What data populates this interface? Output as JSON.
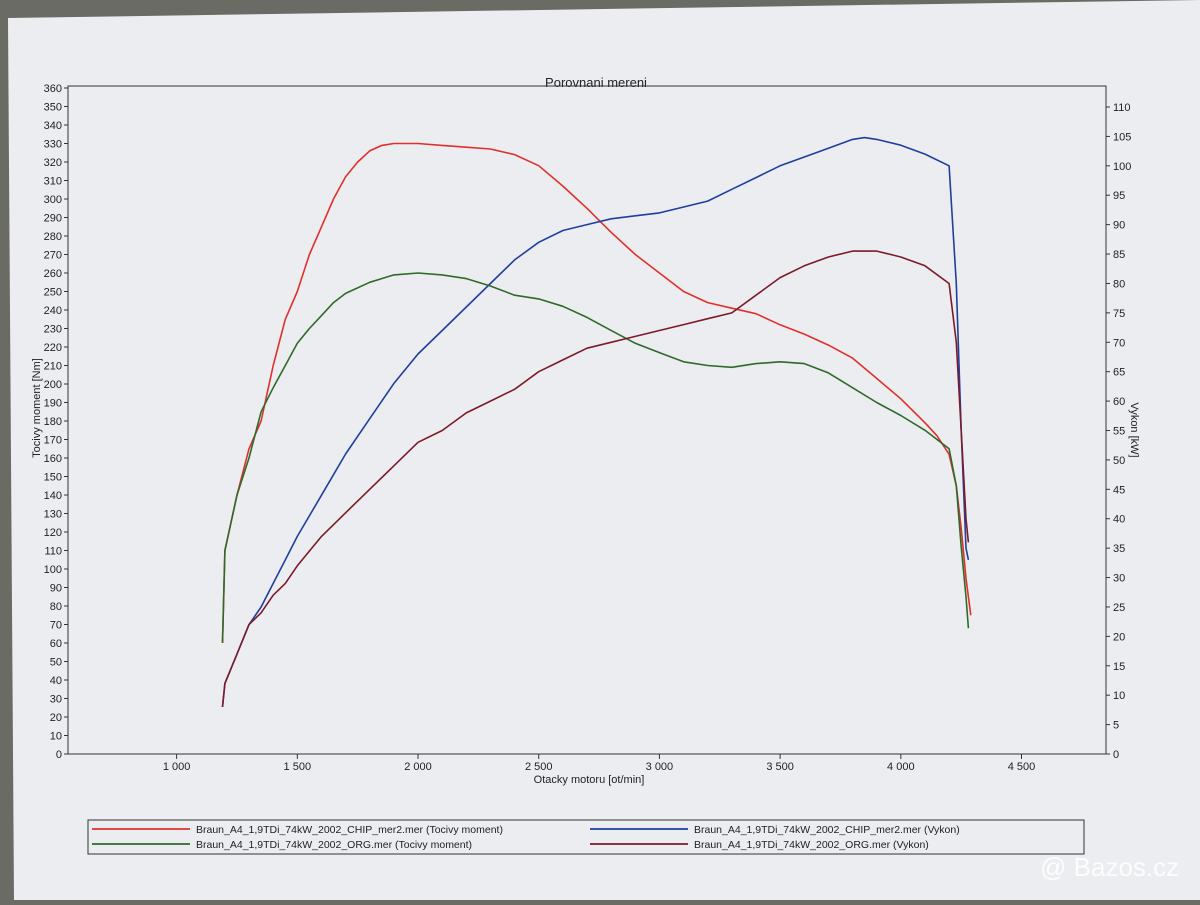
{
  "colors": {
    "paper": "#ebedf0",
    "chip_torque": "#e0302c",
    "chip_power": "#1f3f9e",
    "org_torque": "#2f6a2a",
    "org_power": "#7d1a2a",
    "grid_text": "#222222"
  },
  "watermark": {
    "icon": "at-icon",
    "text": "Bazos.cz"
  },
  "chart_data": {
    "type": "line",
    "title": "Porovnani mereni",
    "xlabel": "Otacky motoru [ot/min]",
    "ylabel": "Tocivy moment [Nm]",
    "y2label": "Vykon [kW]",
    "xlim": [
      550,
      4850
    ],
    "ylim": [
      0,
      360
    ],
    "y2lim": [
      0,
      110
    ],
    "x_ticks": [
      1000,
      1500,
      2000,
      2500,
      3000,
      3500,
      4000,
      4500
    ],
    "x_tick_labels": [
      "1 000",
      "1 500",
      "2 000",
      "2 500",
      "3 000",
      "3 500",
      "4 000",
      "4 500"
    ],
    "y_ticks": [
      0,
      10,
      20,
      30,
      40,
      50,
      60,
      70,
      80,
      90,
      100,
      110,
      120,
      130,
      140,
      150,
      160,
      170,
      180,
      190,
      200,
      210,
      220,
      230,
      240,
      250,
      260,
      270,
      280,
      290,
      300,
      310,
      320,
      330,
      340,
      350,
      360
    ],
    "y2_ticks": [
      0,
      5,
      10,
      15,
      20,
      25,
      30,
      35,
      40,
      45,
      50,
      55,
      60,
      65,
      70,
      75,
      80,
      85,
      90,
      95,
      100,
      105,
      110
    ],
    "grid": false,
    "legend_position": "bottom",
    "series": [
      {
        "name": "Braun_A4_1,9TDi_74kW_2002_CHIP_mer2.mer  (Tocivy moment)",
        "axis": "left",
        "color_key": "chip_torque",
        "x": [
          1190,
          1200,
          1250,
          1300,
          1350,
          1400,
          1450,
          1500,
          1550,
          1600,
          1650,
          1700,
          1750,
          1800,
          1850,
          1900,
          1950,
          2000,
          2100,
          2200,
          2300,
          2400,
          2500,
          2600,
          2700,
          2800,
          2900,
          3000,
          3100,
          3200,
          3300,
          3400,
          3500,
          3600,
          3700,
          3800,
          3900,
          4000,
          4100,
          4150,
          4200,
          4230,
          4250,
          4270,
          4290
        ],
        "y": [
          60,
          110,
          140,
          165,
          180,
          210,
          235,
          250,
          270,
          285,
          300,
          312,
          320,
          326,
          329,
          330,
          330,
          330,
          329,
          328,
          327,
          324,
          318,
          307,
          295,
          282,
          270,
          260,
          250,
          244,
          241,
          238,
          232,
          227,
          221,
          214,
          203,
          192,
          179,
          172,
          162,
          145,
          122,
          95,
          75
        ]
      },
      {
        "name": "Braun_A4_1,9TDi_74kW_2002_CHIP_mer2.mer  (Vykon)",
        "axis": "right",
        "color_key": "chip_power",
        "x": [
          1190,
          1200,
          1250,
          1300,
          1350,
          1400,
          1450,
          1500,
          1600,
          1700,
          1800,
          1900,
          2000,
          2100,
          2200,
          2300,
          2400,
          2500,
          2600,
          2700,
          2800,
          2900,
          3000,
          3100,
          3200,
          3300,
          3400,
          3500,
          3600,
          3700,
          3800,
          3850,
          3900,
          4000,
          4100,
          4200,
          4230,
          4250,
          4270,
          4280
        ],
        "y": [
          8,
          12,
          17,
          22,
          25,
          29,
          33,
          37,
          44,
          51,
          57,
          63,
          68,
          72,
          76,
          80,
          84,
          87,
          89,
          90,
          91,
          91.5,
          92,
          93,
          94,
          96,
          98,
          100,
          101.5,
          103,
          104.5,
          104.8,
          104.5,
          103.5,
          102,
          100,
          80,
          55,
          35,
          33
        ]
      },
      {
        "name": "Braun_A4_1,9TDi_74kW_2002_ORG.mer  (Tocivy moment)",
        "axis": "left",
        "color_key": "org_torque",
        "x": [
          1190,
          1200,
          1250,
          1300,
          1350,
          1400,
          1450,
          1500,
          1550,
          1600,
          1650,
          1700,
          1800,
          1900,
          2000,
          2100,
          2200,
          2300,
          2400,
          2500,
          2600,
          2700,
          2800,
          2900,
          3000,
          3100,
          3200,
          3300,
          3400,
          3500,
          3600,
          3700,
          3800,
          3900,
          4000,
          4100,
          4150,
          4200,
          4230,
          4250,
          4270,
          4280
        ],
        "y": [
          60,
          110,
          140,
          160,
          185,
          198,
          210,
          222,
          230,
          237,
          244,
          249,
          255,
          259,
          260,
          259,
          257,
          253,
          248,
          246,
          242,
          236,
          229,
          222,
          217,
          212,
          210,
          209,
          211,
          212,
          211,
          206,
          198,
          190,
          183,
          175,
          170,
          165,
          145,
          112,
          85,
          68
        ]
      },
      {
        "name": "Braun_A4_1,9TDi_74kW_2002_ORG.mer  (Vykon)",
        "axis": "right",
        "color_key": "org_power",
        "x": [
          1190,
          1200,
          1250,
          1300,
          1350,
          1400,
          1450,
          1500,
          1600,
          1700,
          1800,
          1900,
          2000,
          2100,
          2200,
          2300,
          2400,
          2500,
          2600,
          2700,
          2800,
          2900,
          3000,
          3100,
          3200,
          3300,
          3400,
          3500,
          3600,
          3700,
          3800,
          3900,
          4000,
          4100,
          4200,
          4230,
          4250,
          4270,
          4280
        ],
        "y": [
          8,
          12,
          17,
          22,
          24,
          27,
          29,
          32,
          37,
          41,
          45,
          49,
          53,
          55,
          58,
          60,
          62,
          65,
          67,
          69,
          70,
          71,
          72,
          73,
          74,
          75,
          78,
          81,
          83,
          84.5,
          85.5,
          85.5,
          84.5,
          83,
          80,
          70,
          55,
          40,
          36
        ]
      }
    ]
  }
}
